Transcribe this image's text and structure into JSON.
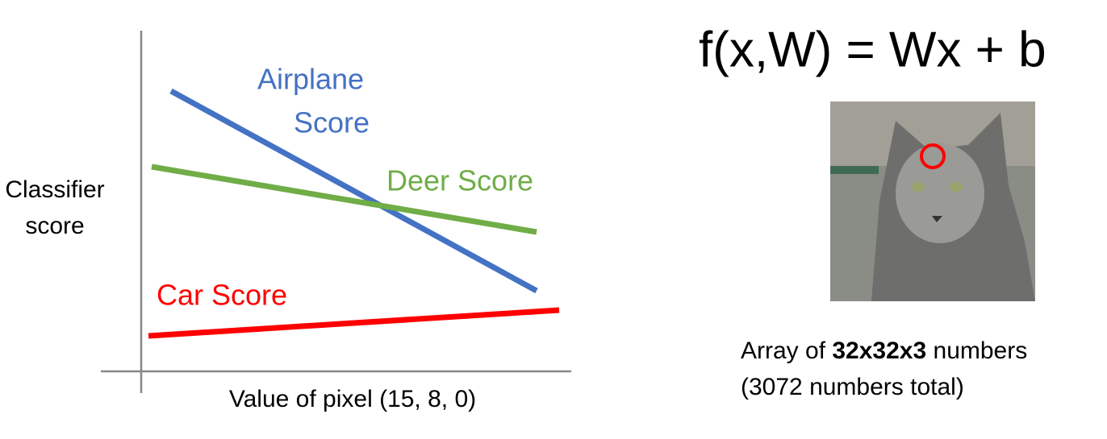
{
  "plot": {
    "y_label": [
      "Classifier",
      "score"
    ],
    "x_label": "Value of pixel (15, 8, 0)",
    "lines": [
      {
        "label": [
          "Airplane",
          "Score"
        ]
      },
      {
        "label": [
          "Deer Score"
        ]
      },
      {
        "label": [
          "Car Score"
        ]
      }
    ]
  },
  "formula": "f(x,W) = Wx + b",
  "caption": {
    "line1": [
      "Array of ",
      "32x32x3",
      " numbers"
    ],
    "line2": "(3072 numbers total)"
  }
}
